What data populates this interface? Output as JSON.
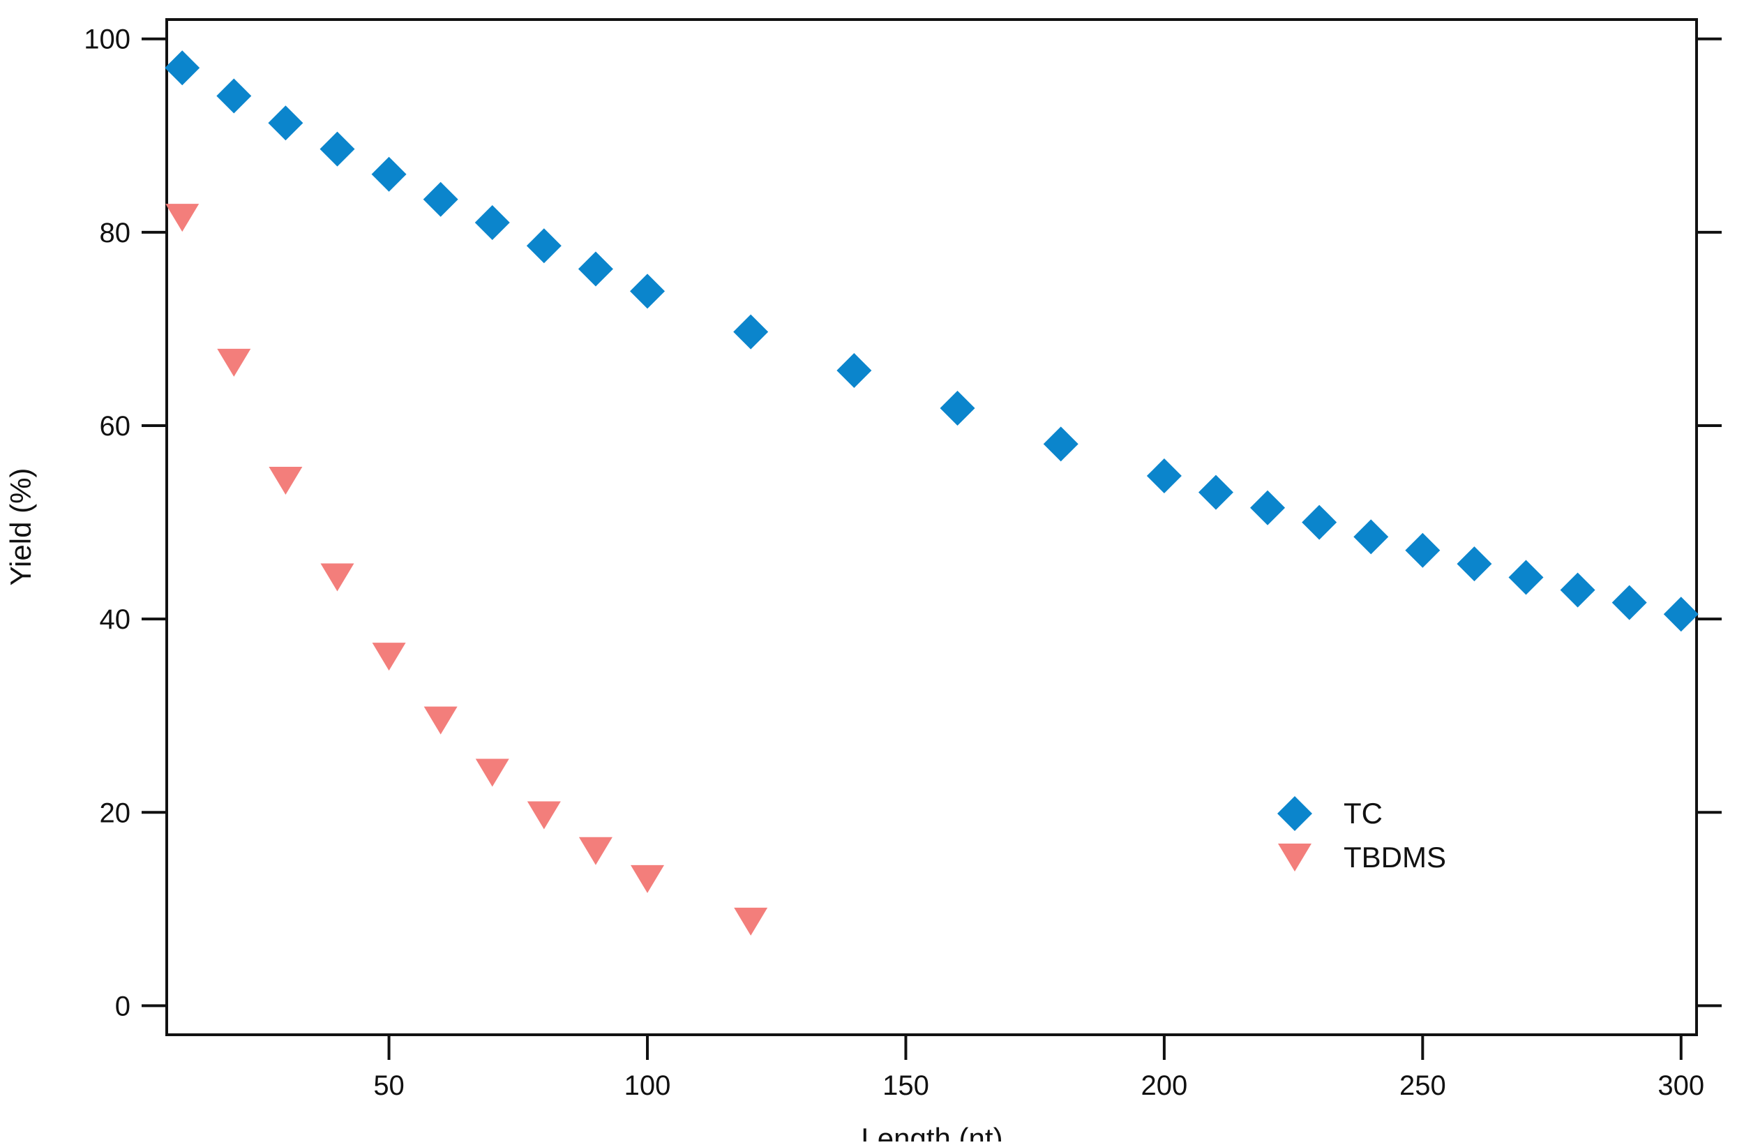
{
  "chart_data": {
    "type": "scatter",
    "title": "",
    "xlabel": "Length (nt)",
    "ylabel": "Yield (%)",
    "xlim": [
      7,
      303
    ],
    "ylim": [
      -3,
      102
    ],
    "xticks": [
      50,
      100,
      150,
      200,
      250,
      300
    ],
    "yticks": [
      0,
      20,
      40,
      60,
      80,
      100
    ],
    "grid": false,
    "legend_position": "lower-right",
    "series": [
      {
        "name": "TC",
        "marker": "diamond",
        "color": "#0B85CC",
        "x": [
          10,
          20,
          30,
          40,
          50,
          60,
          70,
          80,
          90,
          100,
          120,
          140,
          160,
          180,
          200,
          210,
          220,
          230,
          240,
          250,
          260,
          270,
          280,
          290,
          300
        ],
        "y": [
          97,
          94.1,
          91.3,
          88.6,
          86,
          83.4,
          81,
          78.6,
          76.2,
          73.9,
          69.7,
          65.7,
          61.8,
          58.1,
          54.8,
          53.1,
          51.5,
          50,
          48.5,
          47.1,
          45.7,
          44.3,
          43,
          41.7,
          40.5
        ]
      },
      {
        "name": "TBDMS",
        "marker": "triangle-down",
        "color": "#F37E7B",
        "x": [
          10,
          20,
          30,
          40,
          50,
          60,
          70,
          80,
          90,
          100,
          120
        ],
        "y": [
          81.5,
          66.5,
          54.3,
          44.3,
          36.1,
          29.5,
          24.1,
          19.7,
          16,
          13.1,
          8.7
        ]
      }
    ]
  }
}
